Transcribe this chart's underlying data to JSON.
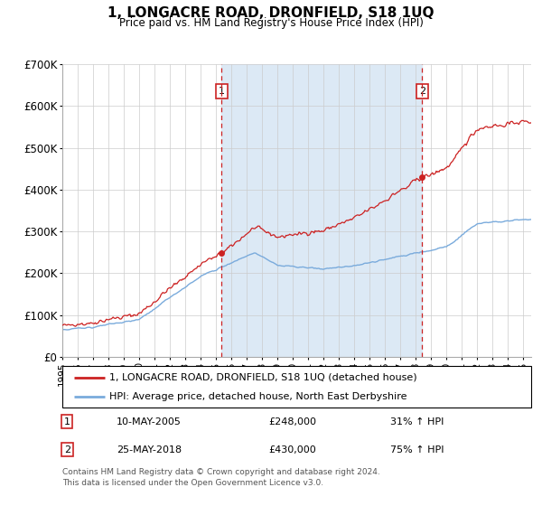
{
  "title": "1, LONGACRE ROAD, DRONFIELD, S18 1UQ",
  "subtitle": "Price paid vs. HM Land Registry's House Price Index (HPI)",
  "hpi_label": "HPI: Average price, detached house, North East Derbyshire",
  "price_label": "1, LONGACRE ROAD, DRONFIELD, S18 1UQ (detached house)",
  "sale1_date": "10-MAY-2005",
  "sale1_price": 248000,
  "sale1_hpi_pct": "31% ↑ HPI",
  "sale2_date": "25-MAY-2018",
  "sale2_price": 430000,
  "sale2_hpi_pct": "75% ↑ HPI",
  "footnote1": "Contains HM Land Registry data © Crown copyright and database right 2024.",
  "footnote2": "This data is licensed under the Open Government Licence v3.0.",
  "ylim": [
    0,
    700000
  ],
  "yticks": [
    0,
    100000,
    200000,
    300000,
    400000,
    500000,
    600000,
    700000
  ],
  "ytick_labels": [
    "£0",
    "£100K",
    "£200K",
    "£300K",
    "£400K",
    "£500K",
    "£600K",
    "£700K"
  ],
  "hpi_color": "#7aabdc",
  "price_color": "#cc2222",
  "bg_color": "#dce9f5",
  "grid_color": "#cccccc",
  "sale1_x": 2005.37,
  "sale2_x": 2018.41,
  "xmin": 1995.0,
  "xmax": 2025.5
}
